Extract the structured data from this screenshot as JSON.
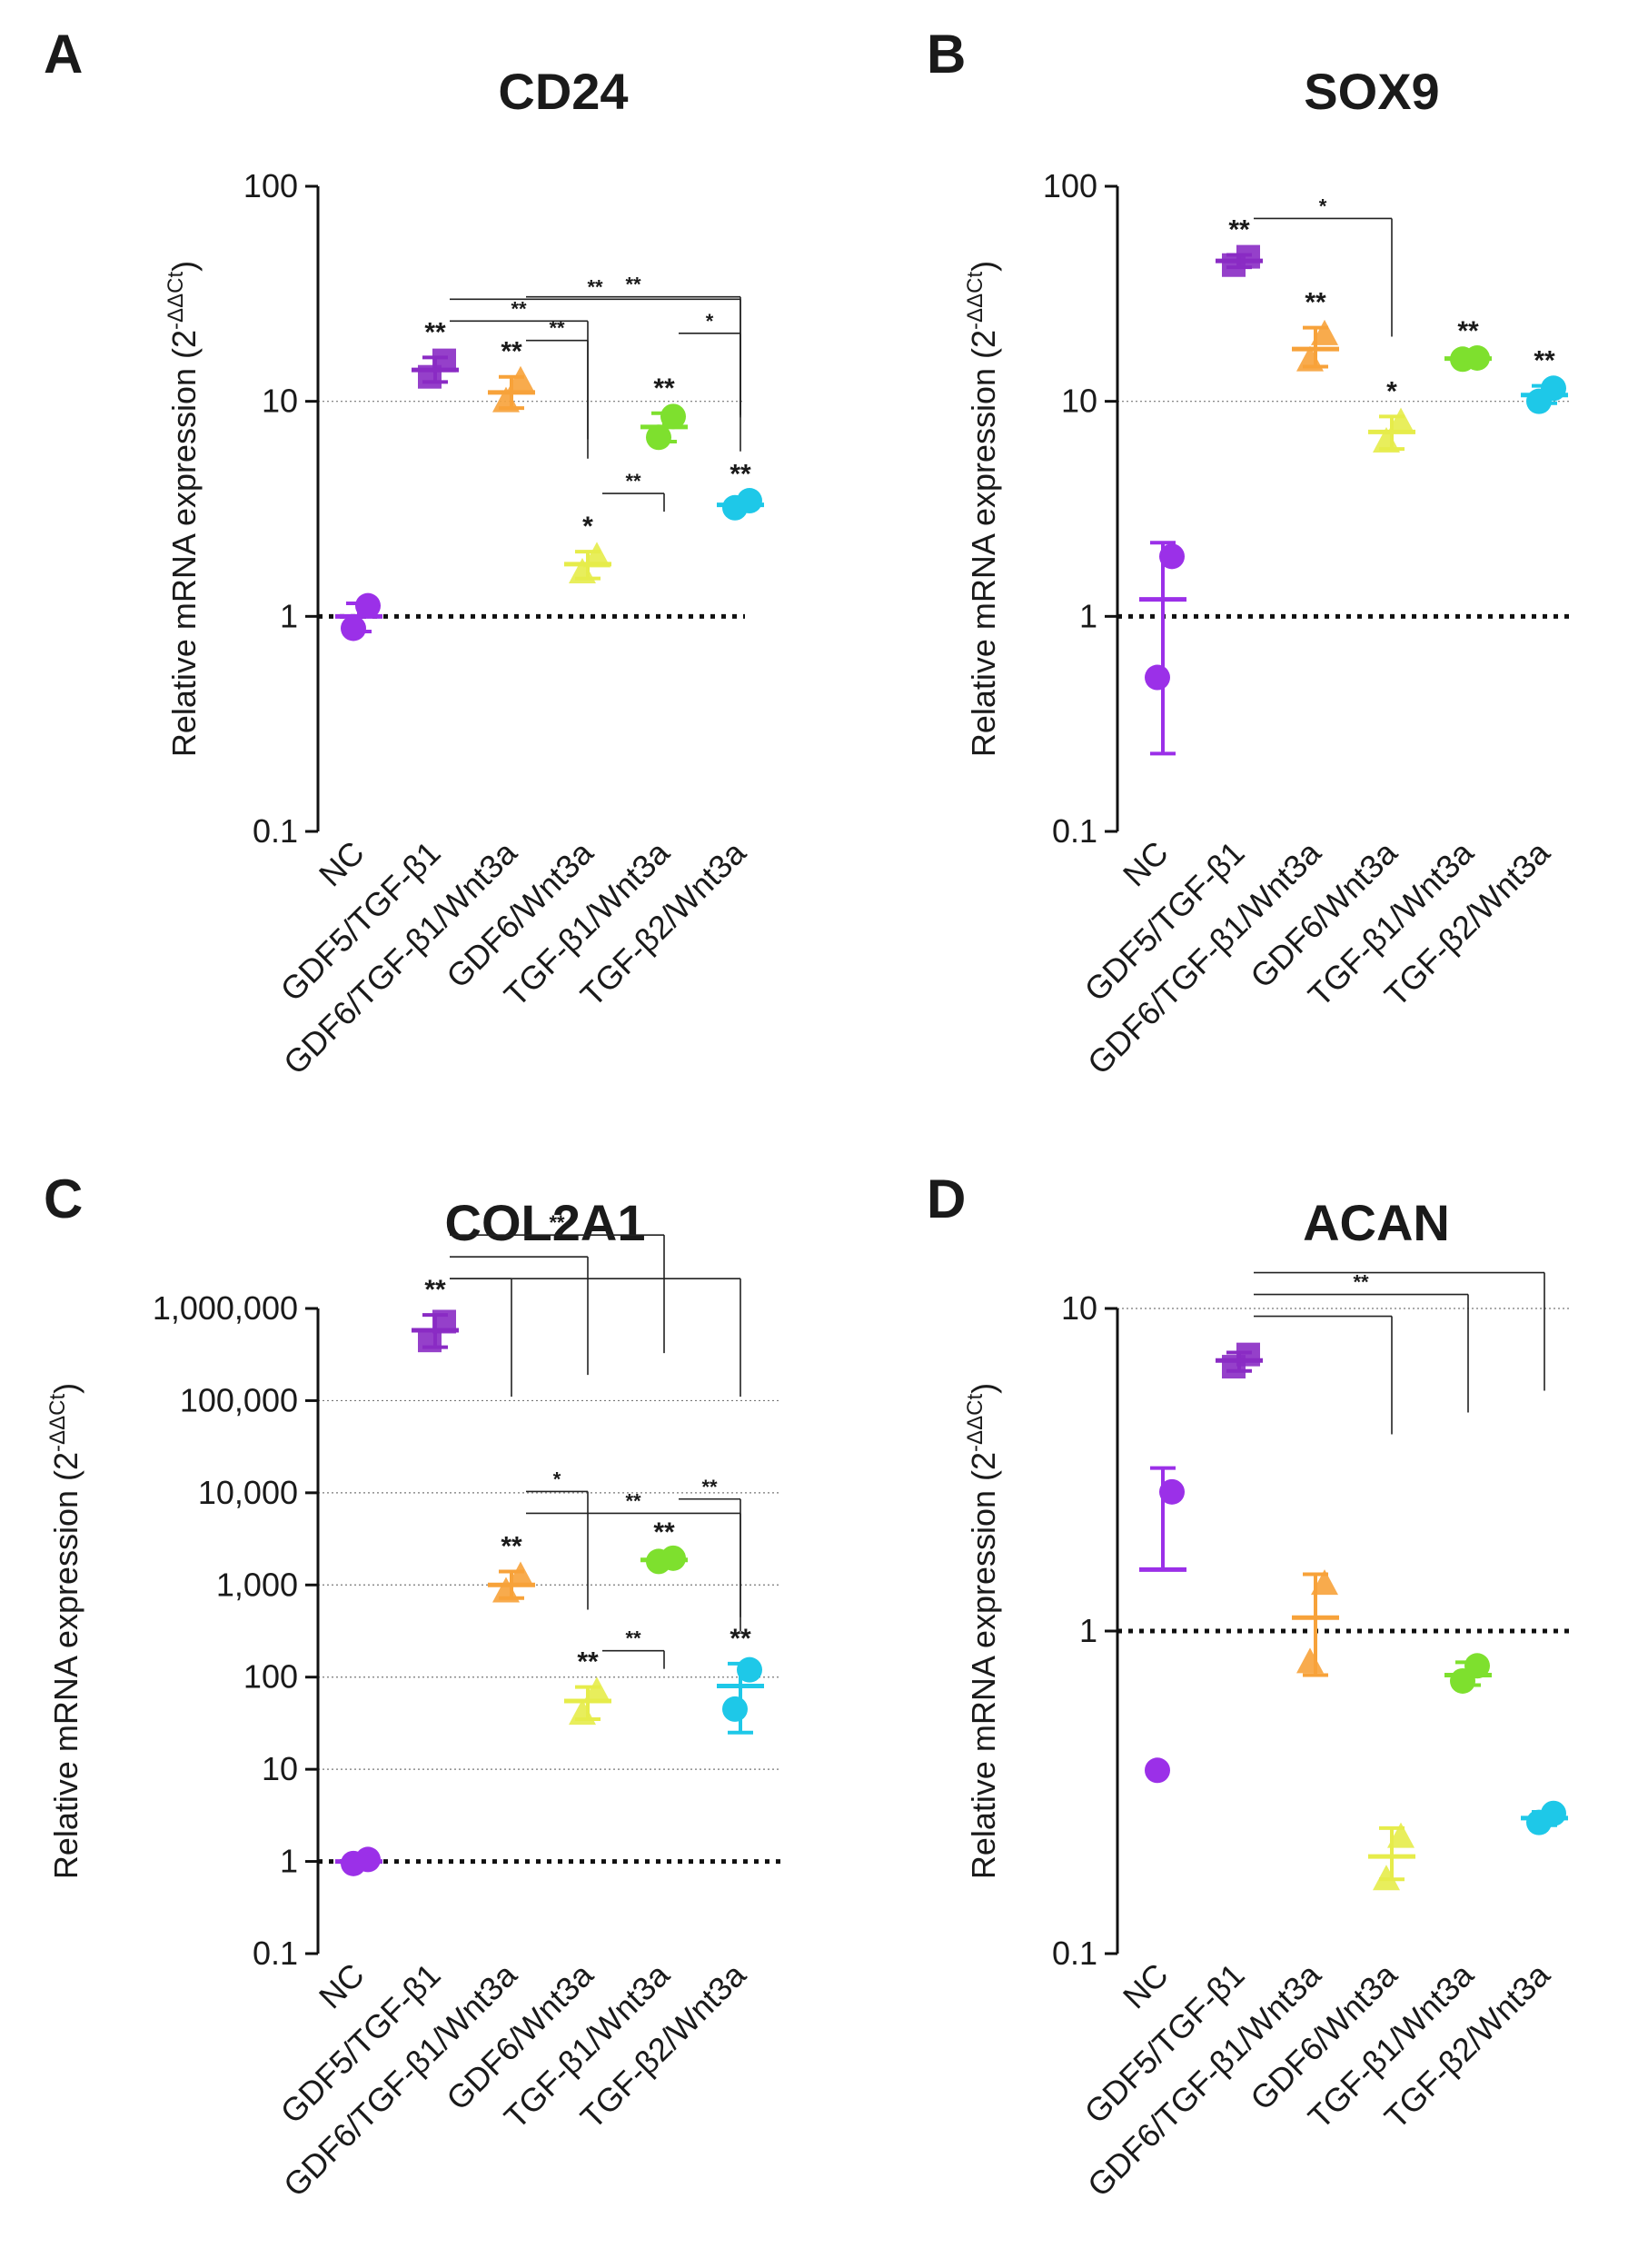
{
  "chart_data": [
    {
      "panel": "A",
      "title": "CD24",
      "type": "scatter",
      "yscale": "log",
      "ylim": [
        0.1,
        100
      ],
      "ylabel": "Relative mRNA expression (2",
      "ylabel_sup": "-ΔΔCt",
      "ylabel_close": ")",
      "yticks": [
        0.1,
        1,
        10,
        100
      ],
      "ytick_labels": [
        "0.1",
        "1",
        "10",
        "100"
      ],
      "categories": [
        "NC",
        "GDF5/TGF-β1",
        "GDF6/TGF-β1/Wnt3a",
        "GDF6/Wnt3a",
        "TGF-β1/Wnt3a",
        "TGF-β2/Wnt3a"
      ],
      "series": [
        {
          "name": "NC",
          "color": "#9b30e8",
          "marker": "circle",
          "points": [
            0.88,
            1.12
          ],
          "mean": 1.0,
          "low": 0.85,
          "high": 1.15,
          "sig": ""
        },
        {
          "name": "GDF5/TGF-β1",
          "color": "#8a2bc4",
          "marker": "square",
          "points": [
            13.0,
            15.5
          ],
          "mean": 14.0,
          "low": 12.3,
          "high": 16.0,
          "sig": "**"
        },
        {
          "name": "GDF6/TGF-β1/Wnt3a",
          "color": "#f7a23a",
          "marker": "triangle",
          "points": [
            10.0,
            12.5
          ],
          "mean": 11.0,
          "low": 9.3,
          "high": 13.0,
          "sig": "**"
        },
        {
          "name": "GDF6/Wnt3a",
          "color": "#e6ec4a",
          "marker": "triangle",
          "points": [
            1.6,
            1.9
          ],
          "mean": 1.75,
          "low": 1.5,
          "high": 2.0,
          "sig": "*"
        },
        {
          "name": "TGF-β1/Wnt3a",
          "color": "#7ee02e",
          "marker": "circle",
          "points": [
            6.8,
            8.5
          ],
          "mean": 7.6,
          "low": 6.5,
          "high": 8.8,
          "sig": "**"
        },
        {
          "name": "TGF-β2/Wnt3a",
          "color": "#1ec8e8",
          "marker": "circle",
          "points": [
            3.2,
            3.45
          ],
          "mean": 3.3,
          "low": 3.1,
          "high": 3.5,
          "sig": "**"
        }
      ],
      "reference_lines": [
        1,
        10
      ],
      "brackets": [
        {
          "from": 1,
          "to": 3,
          "label": "**"
        },
        {
          "from": 1,
          "to": 5,
          "label": "**"
        },
        {
          "from": 2,
          "to": 5,
          "label": "**"
        },
        {
          "from": 2,
          "to": 3,
          "label": "**"
        },
        {
          "from": 3,
          "to": 4,
          "label": "**"
        },
        {
          "from": 4,
          "to": 5,
          "label": "*"
        }
      ]
    },
    {
      "panel": "B",
      "title": "SOX9",
      "type": "scatter",
      "yscale": "log",
      "ylim": [
        0.1,
        100
      ],
      "ylabel": "Relative mRNA expression (2",
      "ylabel_sup": "-ΔΔCt",
      "ylabel_close": ")",
      "yticks": [
        0.1,
        1,
        10,
        100
      ],
      "ytick_labels": [
        "0.1",
        "1",
        "10",
        "100"
      ],
      "categories": [
        "NC",
        "GDF5/TGF-β1",
        "GDF6/TGF-β1/Wnt3a",
        "GDF6/Wnt3a",
        "TGF-β1/Wnt3a",
        "TGF-β2/Wnt3a"
      ],
      "series": [
        {
          "name": "NC",
          "color": "#9b30e8",
          "marker": "circle",
          "points": [
            0.52,
            1.9
          ],
          "mean": 1.2,
          "low": 0.23,
          "high": 2.2,
          "sig": ""
        },
        {
          "name": "GDF5/TGF-β1",
          "color": "#8a2bc4",
          "marker": "square",
          "points": [
            43,
            47
          ],
          "mean": 45,
          "low": 42,
          "high": 48,
          "sig": "**"
        },
        {
          "name": "GDF6/TGF-β1/Wnt3a",
          "color": "#f7a23a",
          "marker": "triangle",
          "points": [
            15.5,
            20.5
          ],
          "mean": 17.5,
          "low": 14.5,
          "high": 22,
          "sig": "**"
        },
        {
          "name": "GDF6/Wnt3a",
          "color": "#e6ec4a",
          "marker": "triangle",
          "points": [
            6.5,
            8.0
          ],
          "mean": 7.2,
          "low": 6.0,
          "high": 8.5,
          "sig": "*"
        },
        {
          "name": "TGF-β1/Wnt3a",
          "color": "#7ee02e",
          "marker": "circle",
          "points": [
            15.7,
            15.9
          ],
          "mean": 15.8,
          "low": 15.5,
          "high": 16.2,
          "sig": "**"
        },
        {
          "name": "TGF-β2/Wnt3a",
          "color": "#1ec8e8",
          "marker": "circle",
          "points": [
            10.0,
            11.5
          ],
          "mean": 10.7,
          "low": 9.8,
          "high": 11.8,
          "sig": "**"
        }
      ],
      "reference_lines": [
        1,
        10
      ],
      "brackets": [
        {
          "from": 1,
          "to": 3,
          "label": "*"
        }
      ]
    },
    {
      "panel": "C",
      "title": "COL2A1",
      "type": "scatter",
      "yscale": "log",
      "ylim": [
        0.1,
        1000000
      ],
      "ylabel": "Relative mRNA expression (2",
      "ylabel_sup": "-ΔΔCt",
      "ylabel_close": ")",
      "yticks": [
        0.1,
        1,
        10,
        100,
        1000,
        10000,
        100000,
        1000000
      ],
      "ytick_labels": [
        "0.1",
        "1",
        "10",
        "100",
        "1,000",
        "10,000",
        "100,000",
        "1,000,000"
      ],
      "categories": [
        "NC",
        "GDF5/TGF-β1",
        "GDF6/TGF-β1/Wnt3a",
        "GDF6/Wnt3a",
        "TGF-β1/Wnt3a",
        "TGF-β2/Wnt3a"
      ],
      "series": [
        {
          "name": "NC",
          "color": "#9b30e8",
          "marker": "circle",
          "points": [
            0.95,
            1.05
          ],
          "mean": 1.0,
          "low": 0.95,
          "high": 1.05,
          "sig": ""
        },
        {
          "name": "GDF5/TGF-β1",
          "color": "#8a2bc4",
          "marker": "square",
          "points": [
            450000,
            720000
          ],
          "mean": 580000,
          "low": 380000,
          "high": 850000,
          "sig": "**"
        },
        {
          "name": "GDF6/TGF-β1/Wnt3a",
          "color": "#f7a23a",
          "marker": "triangle",
          "points": [
            850,
            1250
          ],
          "mean": 1000,
          "low": 720,
          "high": 1400,
          "sig": "**"
        },
        {
          "name": "GDF6/Wnt3a",
          "color": "#e6ec4a",
          "marker": "triangle",
          "points": [
            40,
            70
          ],
          "mean": 55,
          "low": 35,
          "high": 78,
          "sig": "**"
        },
        {
          "name": "TGF-β1/Wnt3a",
          "color": "#7ee02e",
          "marker": "circle",
          "points": [
            1800,
            1950
          ],
          "mean": 1870,
          "low": 1750,
          "high": 2000,
          "sig": "**"
        },
        {
          "name": "TGF-β2/Wnt3a",
          "color": "#1ec8e8",
          "marker": "circle",
          "points": [
            45,
            120
          ],
          "mean": 80,
          "low": 25,
          "high": 140,
          "sig": "**"
        }
      ],
      "reference_lines": [
        1,
        10,
        100,
        1000,
        10000,
        100000
      ],
      "brackets": [
        {
          "from": 1,
          "to": 2,
          "label": ""
        },
        {
          "from": 1,
          "to": 3,
          "label": ""
        },
        {
          "from": 1,
          "to": 4,
          "label": "**"
        },
        {
          "from": 1,
          "to": 5,
          "label": ""
        },
        {
          "from": 2,
          "to": 5,
          "label": "**"
        },
        {
          "from": 2,
          "to": 3,
          "label": "*"
        },
        {
          "from": 3,
          "to": 4,
          "label": "**"
        },
        {
          "from": 4,
          "to": 5,
          "label": "**"
        }
      ]
    },
    {
      "panel": "D",
      "title": "ACAN",
      "type": "scatter",
      "yscale": "log",
      "ylim": [
        0.1,
        10
      ],
      "ylabel": "Relative mRNA expression (2",
      "ylabel_sup": "-ΔΔCt",
      "ylabel_close": ")",
      "yticks": [
        0.1,
        1,
        10
      ],
      "ytick_labels": [
        "0.1",
        "1",
        "10"
      ],
      "categories": [
        "NC",
        "GDF5/TGF-β1",
        "GDF6/TGF-β1/Wnt3a",
        "GDF6/Wnt3a",
        "TGF-β1/Wnt3a",
        "TGF-β2/Wnt3a"
      ],
      "series": [
        {
          "name": "NC",
          "color": "#9b30e8",
          "marker": "circle",
          "points": [
            0.37,
            2.7
          ],
          "mean": 1.55,
          "low": 1.55,
          "high": 3.2,
          "sig": ""
        },
        {
          "name": "GDF5/TGF-β1",
          "color": "#8a2bc4",
          "marker": "square",
          "points": [
            6.6,
            7.2
          ],
          "mean": 6.9,
          "low": 6.4,
          "high": 7.3,
          "sig": ""
        },
        {
          "name": "GDF6/TGF-β1/Wnt3a",
          "color": "#f7a23a",
          "marker": "triangle",
          "points": [
            0.8,
            1.4
          ],
          "mean": 1.1,
          "low": 0.73,
          "high": 1.5,
          "sig": ""
        },
        {
          "name": "GDF6/Wnt3a",
          "color": "#e6ec4a",
          "marker": "triangle",
          "points": [
            0.17,
            0.23
          ],
          "mean": 0.2,
          "low": 0.17,
          "high": 0.245,
          "sig": ""
        },
        {
          "name": "TGF-β1/Wnt3a",
          "color": "#7ee02e",
          "marker": "circle",
          "points": [
            0.7,
            0.78
          ],
          "mean": 0.73,
          "low": 0.68,
          "high": 0.8,
          "sig": ""
        },
        {
          "name": "TGF-β2/Wnt3a",
          "color": "#1ec8e8",
          "marker": "circle",
          "points": [
            0.255,
            0.272
          ],
          "mean": 0.263,
          "low": 0.25,
          "high": 0.275,
          "sig": ""
        }
      ],
      "reference_lines": [
        1,
        10
      ],
      "brackets": [
        {
          "from": 1,
          "to": 3,
          "label": ""
        },
        {
          "from": 1,
          "to": 4,
          "label": "**"
        },
        {
          "from": 1,
          "to": 5,
          "label": ""
        }
      ]
    }
  ]
}
